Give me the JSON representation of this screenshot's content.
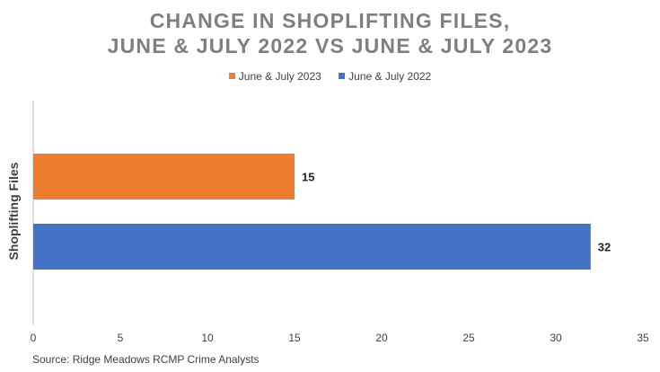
{
  "chart_data": {
    "type": "bar",
    "orientation": "horizontal",
    "title_lines": [
      "CHANGE IN SHOPLIFTING FILES,",
      "JUNE & JULY 2022 VS JUNE & JULY 2023"
    ],
    "ylabel": "Shoplifting Files",
    "xlabel": "",
    "xlim": [
      0,
      35
    ],
    "xticks": [
      0,
      5,
      10,
      15,
      20,
      25,
      30,
      35
    ],
    "grid": false,
    "legend_placement": "top",
    "series": [
      {
        "name": "June & July 2023",
        "values": [
          15
        ],
        "color": "#ED7D31"
      },
      {
        "name": "June & July 2022",
        "values": [
          32
        ],
        "color": "#4472C4"
      }
    ],
    "source": "Source: Ridge Meadows RCMP Crime Analysts"
  }
}
